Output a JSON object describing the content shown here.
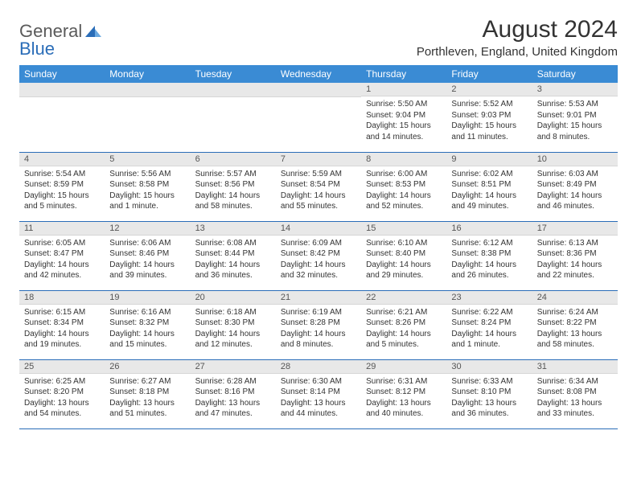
{
  "logo": {
    "general": "General",
    "blue": "Blue"
  },
  "title": "August 2024",
  "location": "Porthleven, England, United Kingdom",
  "weekdays": [
    "Sunday",
    "Monday",
    "Tuesday",
    "Wednesday",
    "Thursday",
    "Friday",
    "Saturday"
  ],
  "colors": {
    "header_bg": "#3a8bd4",
    "header_text": "#ffffff",
    "daynum_bg": "#e8e8e8",
    "rule": "#2a6db8",
    "text": "#333333"
  },
  "grid": [
    [
      null,
      null,
      null,
      null,
      {
        "n": "1",
        "sunrise": "5:50 AM",
        "sunset": "9:04 PM",
        "daylight": "15 hours and 14 minutes."
      },
      {
        "n": "2",
        "sunrise": "5:52 AM",
        "sunset": "9:03 PM",
        "daylight": "15 hours and 11 minutes."
      },
      {
        "n": "3",
        "sunrise": "5:53 AM",
        "sunset": "9:01 PM",
        "daylight": "15 hours and 8 minutes."
      }
    ],
    [
      {
        "n": "4",
        "sunrise": "5:54 AM",
        "sunset": "8:59 PM",
        "daylight": "15 hours and 5 minutes."
      },
      {
        "n": "5",
        "sunrise": "5:56 AM",
        "sunset": "8:58 PM",
        "daylight": "15 hours and 1 minute."
      },
      {
        "n": "6",
        "sunrise": "5:57 AM",
        "sunset": "8:56 PM",
        "daylight": "14 hours and 58 minutes."
      },
      {
        "n": "7",
        "sunrise": "5:59 AM",
        "sunset": "8:54 PM",
        "daylight": "14 hours and 55 minutes."
      },
      {
        "n": "8",
        "sunrise": "6:00 AM",
        "sunset": "8:53 PM",
        "daylight": "14 hours and 52 minutes."
      },
      {
        "n": "9",
        "sunrise": "6:02 AM",
        "sunset": "8:51 PM",
        "daylight": "14 hours and 49 minutes."
      },
      {
        "n": "10",
        "sunrise": "6:03 AM",
        "sunset": "8:49 PM",
        "daylight": "14 hours and 46 minutes."
      }
    ],
    [
      {
        "n": "11",
        "sunrise": "6:05 AM",
        "sunset": "8:47 PM",
        "daylight": "14 hours and 42 minutes."
      },
      {
        "n": "12",
        "sunrise": "6:06 AM",
        "sunset": "8:46 PM",
        "daylight": "14 hours and 39 minutes."
      },
      {
        "n": "13",
        "sunrise": "6:08 AM",
        "sunset": "8:44 PM",
        "daylight": "14 hours and 36 minutes."
      },
      {
        "n": "14",
        "sunrise": "6:09 AM",
        "sunset": "8:42 PM",
        "daylight": "14 hours and 32 minutes."
      },
      {
        "n": "15",
        "sunrise": "6:10 AM",
        "sunset": "8:40 PM",
        "daylight": "14 hours and 29 minutes."
      },
      {
        "n": "16",
        "sunrise": "6:12 AM",
        "sunset": "8:38 PM",
        "daylight": "14 hours and 26 minutes."
      },
      {
        "n": "17",
        "sunrise": "6:13 AM",
        "sunset": "8:36 PM",
        "daylight": "14 hours and 22 minutes."
      }
    ],
    [
      {
        "n": "18",
        "sunrise": "6:15 AM",
        "sunset": "8:34 PM",
        "daylight": "14 hours and 19 minutes."
      },
      {
        "n": "19",
        "sunrise": "6:16 AM",
        "sunset": "8:32 PM",
        "daylight": "14 hours and 15 minutes."
      },
      {
        "n": "20",
        "sunrise": "6:18 AM",
        "sunset": "8:30 PM",
        "daylight": "14 hours and 12 minutes."
      },
      {
        "n": "21",
        "sunrise": "6:19 AM",
        "sunset": "8:28 PM",
        "daylight": "14 hours and 8 minutes."
      },
      {
        "n": "22",
        "sunrise": "6:21 AM",
        "sunset": "8:26 PM",
        "daylight": "14 hours and 5 minutes."
      },
      {
        "n": "23",
        "sunrise": "6:22 AM",
        "sunset": "8:24 PM",
        "daylight": "14 hours and 1 minute."
      },
      {
        "n": "24",
        "sunrise": "6:24 AM",
        "sunset": "8:22 PM",
        "daylight": "13 hours and 58 minutes."
      }
    ],
    [
      {
        "n": "25",
        "sunrise": "6:25 AM",
        "sunset": "8:20 PM",
        "daylight": "13 hours and 54 minutes."
      },
      {
        "n": "26",
        "sunrise": "6:27 AM",
        "sunset": "8:18 PM",
        "daylight": "13 hours and 51 minutes."
      },
      {
        "n": "27",
        "sunrise": "6:28 AM",
        "sunset": "8:16 PM",
        "daylight": "13 hours and 47 minutes."
      },
      {
        "n": "28",
        "sunrise": "6:30 AM",
        "sunset": "8:14 PM",
        "daylight": "13 hours and 44 minutes."
      },
      {
        "n": "29",
        "sunrise": "6:31 AM",
        "sunset": "8:12 PM",
        "daylight": "13 hours and 40 minutes."
      },
      {
        "n": "30",
        "sunrise": "6:33 AM",
        "sunset": "8:10 PM",
        "daylight": "13 hours and 36 minutes."
      },
      {
        "n": "31",
        "sunrise": "6:34 AM",
        "sunset": "8:08 PM",
        "daylight": "13 hours and 33 minutes."
      }
    ]
  ],
  "labels": {
    "sunrise": "Sunrise: ",
    "sunset": "Sunset: ",
    "daylight": "Daylight: "
  }
}
